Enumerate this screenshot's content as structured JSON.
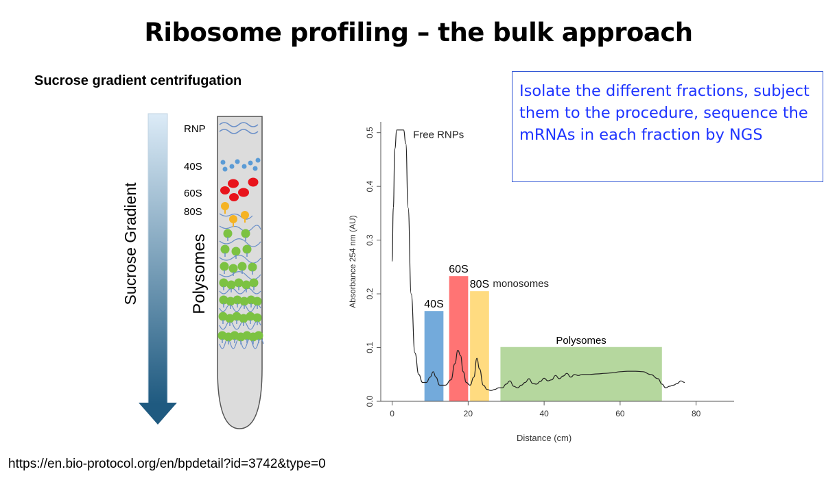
{
  "title": "Ribosome profiling – the bulk approach",
  "subtitle": "Sucrose gradient centrifugation",
  "source_url": "https://en.bio-protocol.org/en/bpdetail?id=3742&type=0",
  "callout": "Isolate the different fractions, subject them to the procedure, sequence the mRNAs in each fraction by NGS",
  "tube": {
    "gradient_label": "Sucrose Gradient",
    "polysomes_label": "Polysomes",
    "layers": [
      "RNP",
      "40S",
      "60S",
      "80S"
    ],
    "colors": {
      "small_subunit": "#5b9bd5",
      "large_subunit": "#e8141c",
      "monosome": "#f5b324",
      "polysome": "#7cc242",
      "mrna": "#6a8fc8"
    }
  },
  "chart_data": {
    "type": "line",
    "xlabel": "Distance (cm)",
    "ylabel": "Absorbance 254 nm (AU)",
    "xlim": [
      -3,
      90
    ],
    "ylim": [
      0,
      0.52
    ],
    "xticks": [
      0,
      20,
      40,
      60,
      80
    ],
    "yticks": [
      0.0,
      0.1,
      0.2,
      0.3,
      0.4,
      0.5
    ],
    "trace": {
      "x": [
        0,
        0.3,
        0.7,
        1.2,
        2,
        3,
        3.6,
        4.2,
        5,
        6,
        7,
        8,
        9,
        10,
        10.8,
        11.5,
        12.5,
        14,
        15.5,
        16.5,
        17.3,
        18,
        18.7,
        19.5,
        20.5,
        21.5,
        22.3,
        23,
        24,
        25,
        26,
        27,
        28,
        29,
        30,
        31,
        32,
        33,
        34,
        35,
        36,
        37,
        38,
        39,
        40,
        41,
        42,
        43,
        44,
        45,
        46,
        47,
        48,
        49,
        50,
        52,
        54,
        56,
        58,
        60,
        62,
        64,
        66,
        68,
        70,
        71,
        72,
        73,
        74,
        75,
        76,
        77
      ],
      "y": [
        0.26,
        0.36,
        0.47,
        0.505,
        0.505,
        0.505,
        0.48,
        0.36,
        0.2,
        0.09,
        0.05,
        0.035,
        0.035,
        0.045,
        0.055,
        0.045,
        0.03,
        0.03,
        0.04,
        0.07,
        0.095,
        0.085,
        0.055,
        0.035,
        0.03,
        0.045,
        0.08,
        0.06,
        0.03,
        0.022,
        0.02,
        0.022,
        0.025,
        0.025,
        0.032,
        0.038,
        0.028,
        0.025,
        0.03,
        0.035,
        0.042,
        0.033,
        0.032,
        0.037,
        0.043,
        0.038,
        0.04,
        0.048,
        0.042,
        0.047,
        0.052,
        0.045,
        0.05,
        0.048,
        0.05,
        0.05,
        0.051,
        0.052,
        0.053,
        0.055,
        0.056,
        0.056,
        0.055,
        0.05,
        0.042,
        0.032,
        0.025,
        0.028,
        0.03,
        0.033,
        0.038,
        0.035
      ]
    },
    "bands": [
      {
        "label": "40S",
        "x0": 8.5,
        "x1": 13.5,
        "y": 0.168,
        "color": "#5b9bd5"
      },
      {
        "label": "60S",
        "x0": 15,
        "x1": 20,
        "y": 0.233,
        "color": "#ff5c5c"
      },
      {
        "label": "80S",
        "x0": 20.5,
        "x1": 25.5,
        "y": 0.205,
        "color": "#ffd56a"
      },
      {
        "label": "Polysomes",
        "x0": 28.5,
        "x1": 71,
        "y": 0.101,
        "color": "#a8d08d"
      }
    ],
    "annotations": [
      {
        "text": "Free RNPs",
        "x": 5.5,
        "y": 0.49
      },
      {
        "text": "monosomes",
        "x": 26.5,
        "y": 0.213
      }
    ]
  }
}
